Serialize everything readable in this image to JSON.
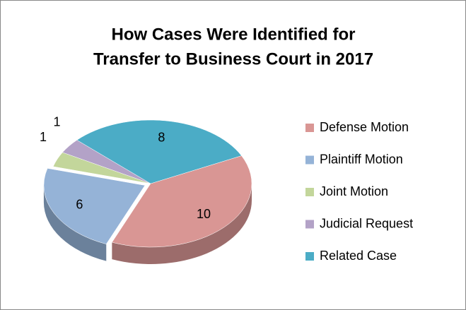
{
  "chart_data": {
    "type": "pie",
    "title": [
      "How Cases Were Identified for",
      "Transfer to Business Court in 2017"
    ],
    "categories": [
      "Defense Motion",
      "Plaintiff Motion",
      "Joint Motion",
      "Judicial Request",
      "Related Case"
    ],
    "values": [
      10,
      6,
      1,
      1,
      8
    ],
    "colors": [
      "#d99694",
      "#95b3d7",
      "#c3d69b",
      "#b3a2c7",
      "#4bacc6"
    ],
    "exploded": [
      false,
      true,
      false,
      false,
      false
    ],
    "legend": "right"
  }
}
